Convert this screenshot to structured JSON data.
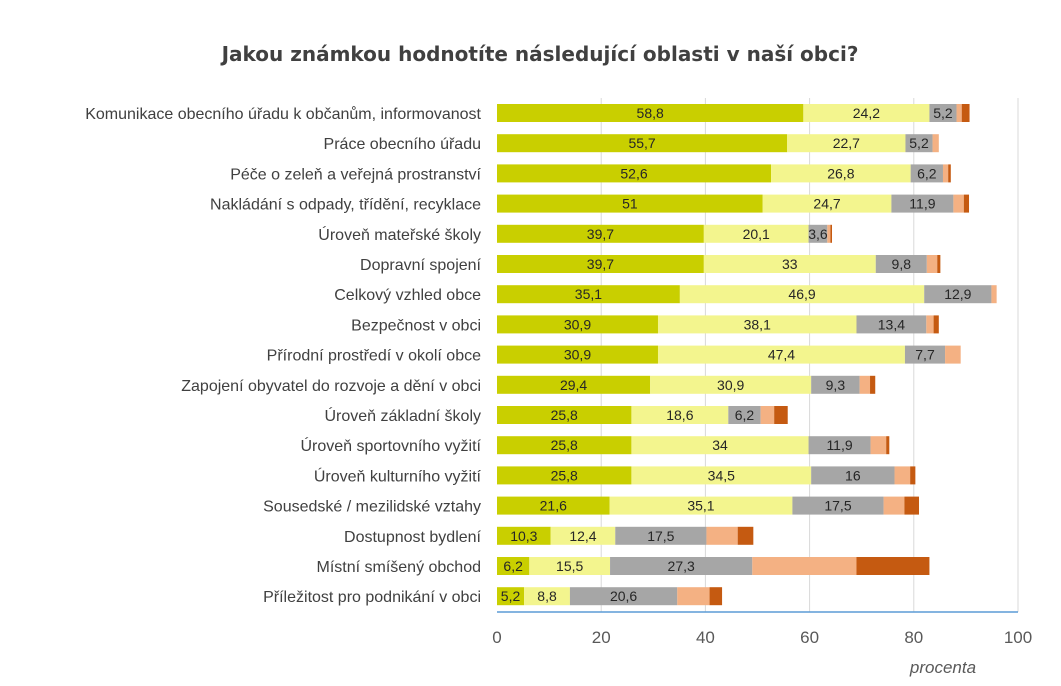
{
  "chart_data": {
    "type": "bar",
    "orientation": "horizontal",
    "stacked": true,
    "title": "Jakou známkou hodnotíte následující oblasti v naší obci?",
    "xlabel": "procenta",
    "ylabel": "",
    "xlim": [
      0,
      100
    ],
    "xticks": [
      0,
      20,
      40,
      60,
      80,
      100
    ],
    "grid": true,
    "legend": "none",
    "categories": [
      "Komunikace obecního úřadu k občanům, informovanost",
      "Práce obecního úřadu",
      "Péče o zeleň a veřejná prostranství",
      "Nakládání s odpady, třídění, recyklace",
      "Úroveň mateřské školy",
      "Dopravní spojení",
      "Celkový vzhled obce",
      "Bezpečnost v obci",
      "Přírodní prostředí v okolí obce",
      "Zapojení obyvatel do rozvoje a dění v obci",
      "Úroveň základní školy",
      "Úroveň sportovního vyžití",
      "Úroveň kulturního vyžití",
      "Sousedské / mezilidské vztahy",
      "Dostupnost bydlení",
      "Místní smíšený obchod",
      "Příležitost pro podnikání v obci"
    ],
    "series": [
      {
        "color": "#c9cf00",
        "values": [
          58.8,
          55.7,
          52.6,
          51,
          39.7,
          39.7,
          35.1,
          30.9,
          30.9,
          29.4,
          25.8,
          25.8,
          25.8,
          21.6,
          10.3,
          6.2,
          5.2
        ]
      },
      {
        "color": "#f3f58e",
        "values": [
          24.2,
          22.7,
          26.8,
          24.7,
          20.1,
          33,
          46.9,
          38.1,
          47.4,
          30.9,
          18.6,
          34,
          34.5,
          35.1,
          12.4,
          15.5,
          8.8
        ]
      },
      {
        "color": "#a6a6a6",
        "values": [
          5.2,
          5.2,
          6.2,
          11.9,
          3.6,
          9.8,
          12.9,
          13.4,
          7.7,
          9.3,
          6.2,
          11.9,
          16,
          17.5,
          17.5,
          27.3,
          20.6
        ]
      },
      {
        "color": "#f4b183",
        "values": [
          1,
          1.2,
          1,
          2,
          0.6,
          2,
          1,
          1.4,
          3,
          2,
          2.6,
          3,
          3,
          4,
          6,
          20,
          6.2
        ]
      },
      {
        "color": "#c55a11",
        "values": [
          1.5,
          0,
          0.5,
          1,
          0.3,
          0.6,
          0,
          1,
          0,
          1,
          2.6,
          0.6,
          1,
          2.8,
          3,
          14,
          2.4
        ]
      }
    ],
    "label_series": [
      0,
      1,
      2
    ]
  }
}
